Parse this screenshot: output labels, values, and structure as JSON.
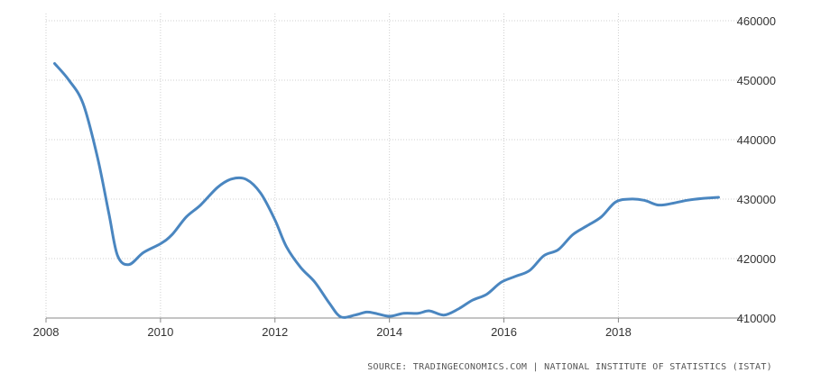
{
  "chart_data": {
    "type": "line",
    "title": "",
    "xlabel": "",
    "ylabel": "",
    "xlim": [
      2008,
      2020.2
    ],
    "ylim": [
      410000,
      460000
    ],
    "x_ticks": [
      "2008",
      "2010",
      "2012",
      "2014",
      "2016",
      "2018"
    ],
    "x_tick_values": [
      2008,
      2010,
      2012,
      2014,
      2016,
      2018
    ],
    "y_ticks": [
      "460000",
      "450000",
      "440000",
      "430000",
      "420000",
      "410000"
    ],
    "y_tick_values": [
      460000,
      450000,
      440000,
      430000,
      420000,
      410000
    ],
    "y_axis_position": "right",
    "grid": true,
    "line_color": "#4a86c0",
    "series": [
      {
        "x": [
          2008.15,
          2008.4,
          2008.65,
          2008.9,
          2009.1,
          2009.25,
          2009.45,
          2009.7,
          2010.0,
          2010.2,
          2010.45,
          2010.7,
          2011.0,
          2011.25,
          2011.5,
          2011.75,
          2012.0,
          2012.2,
          2012.45,
          2012.7,
          2012.95,
          2013.15,
          2013.4,
          2013.6,
          2013.75,
          2014.0,
          2014.25,
          2014.5,
          2014.7,
          2014.95,
          2015.2,
          2015.45,
          2015.7,
          2015.95,
          2016.2,
          2016.45,
          2016.7,
          2016.95,
          2017.2,
          2017.45,
          2017.7,
          2017.95,
          2018.2,
          2018.45,
          2018.7,
          2018.95,
          2019.2,
          2019.45,
          2019.75
        ],
        "values": [
          452800,
          450000,
          446000,
          437000,
          427500,
          420500,
          419000,
          421000,
          422500,
          424000,
          427000,
          429000,
          432000,
          433400,
          433300,
          431000,
          426500,
          422000,
          418500,
          416000,
          412500,
          410200,
          410500,
          411000,
          410800,
          410300,
          410800,
          410800,
          411200,
          410500,
          411500,
          413000,
          414000,
          416000,
          417000,
          418000,
          420500,
          421500,
          424000,
          425500,
          427000,
          429500,
          430000,
          429800,
          429000,
          429300,
          429800,
          430100,
          430300
        ]
      }
    ],
    "source": "SOURCE: TRADINGECONOMICS.COM | NATIONAL INSTITUTE OF STATISTICS (ISTAT)"
  }
}
